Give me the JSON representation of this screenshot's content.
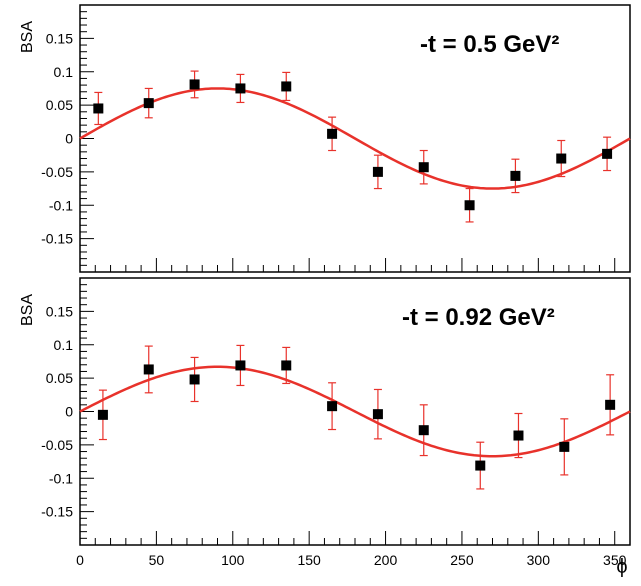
{
  "chart_data": [
    {
      "type": "scatter",
      "title": "-t = 0.5 GeV²",
      "xlabel": "",
      "ylabel": "BSA",
      "xlim": [
        0,
        360
      ],
      "ylim": [
        -0.2,
        0.2
      ],
      "yticks": [
        0.15,
        0.1,
        0.05,
        0,
        -0.05,
        -0.1,
        -0.15
      ],
      "ytick_labels": [
        "0.15",
        "0.1",
        "0.05",
        "0",
        "-0.05",
        "-0.1",
        "-0.15"
      ],
      "grid": false,
      "points_color": "#000000",
      "errorbar_color": "#e8322b",
      "fit_color": "#e8322b",
      "fit": {
        "function": "A*sin(phi)",
        "A": 0.075
      },
      "series": [
        {
          "x": [
            12,
            45,
            75,
            105,
            135,
            165,
            195,
            225,
            255,
            285,
            315,
            345
          ],
          "y": [
            0.045,
            0.053,
            0.081,
            0.075,
            0.078,
            0.007,
            -0.05,
            -0.043,
            -0.1,
            -0.056,
            -0.03,
            -0.023
          ],
          "yerr": [
            0.024,
            0.022,
            0.02,
            0.021,
            0.021,
            0.025,
            0.025,
            0.025,
            0.025,
            0.025,
            0.027,
            0.025
          ]
        }
      ]
    },
    {
      "type": "scatter",
      "title": "-t = 0.92 GeV²",
      "xlabel": "ϕ",
      "ylabel": "BSA",
      "xlim": [
        0,
        360
      ],
      "ylim": [
        -0.2,
        0.2
      ],
      "xticks": [
        0,
        50,
        100,
        150,
        200,
        250,
        300,
        350
      ],
      "xtick_labels": [
        "0",
        "50",
        "100",
        "150",
        "200",
        "250",
        "300",
        "350"
      ],
      "yticks": [
        0.15,
        0.1,
        0.05,
        0,
        -0.05,
        -0.1,
        -0.15
      ],
      "ytick_labels": [
        "0.15",
        "0.1",
        "0.05",
        "0",
        "-0.05",
        "-0.1",
        "-0.15"
      ],
      "grid": false,
      "points_color": "#000000",
      "errorbar_color": "#e8322b",
      "fit_color": "#e8322b",
      "fit": {
        "function": "A*sin(phi)",
        "A": 0.067
      },
      "series": [
        {
          "x": [
            15,
            45,
            75,
            105,
            135,
            165,
            195,
            225,
            262,
            287,
            317,
            347
          ],
          "y": [
            -0.005,
            0.063,
            0.048,
            0.069,
            0.069,
            0.008,
            -0.004,
            -0.028,
            -0.081,
            -0.036,
            -0.053,
            0.01
          ],
          "yerr": [
            0.037,
            0.035,
            0.033,
            0.03,
            0.027,
            0.035,
            0.037,
            0.038,
            0.035,
            0.033,
            0.042,
            0.045
          ]
        }
      ]
    }
  ]
}
